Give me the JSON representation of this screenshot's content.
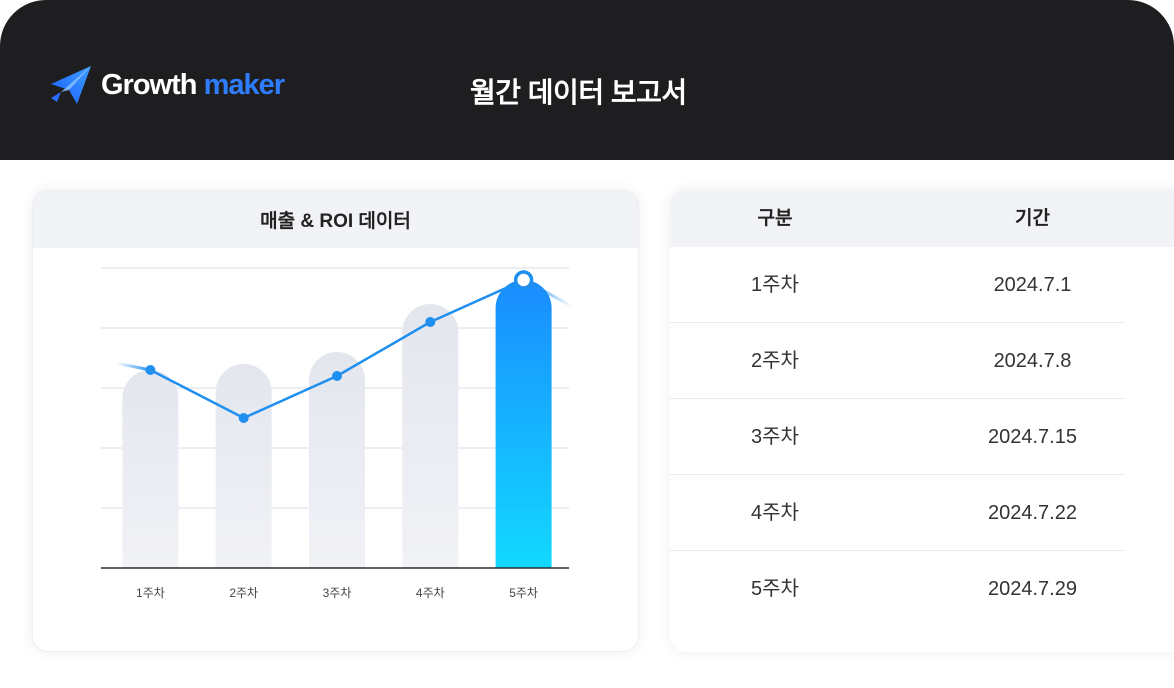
{
  "header": {
    "brand_main": "Growth",
    "brand_accent": "maker",
    "brand_color": "#2f7dff",
    "logo_icon": "rocket-arrow-icon",
    "title": "월간 데이터 보고서"
  },
  "chart_card": {
    "title": "매출 & ROI 데이터"
  },
  "chart_data": {
    "type": "bar",
    "title": "매출 & ROI 데이터",
    "categories": [
      "1주차",
      "2주차",
      "3주차",
      "4주차",
      "5주차"
    ],
    "series": [
      {
        "type": "bar",
        "values": [
          33,
          34,
          36,
          44,
          48
        ]
      },
      {
        "type": "line",
        "values": [
          33,
          25,
          32,
          41,
          48
        ]
      }
    ],
    "ylim": [
      0,
      50
    ],
    "grid": true,
    "legend": "none",
    "highlight_index": 4,
    "bar_color": "#e9eaf0",
    "highlight_color": "#1a8cff",
    "line_color": "#1f8ff0"
  },
  "table": {
    "headers": [
      "구분",
      "기간"
    ],
    "rows": [
      [
        "1주차",
        "2024.7.1"
      ],
      [
        "2주차",
        "2024.7.8"
      ],
      [
        "3주차",
        "2024.7.15"
      ],
      [
        "4주차",
        "2024.7.22"
      ],
      [
        "5주차",
        "2024.7.29"
      ]
    ]
  }
}
